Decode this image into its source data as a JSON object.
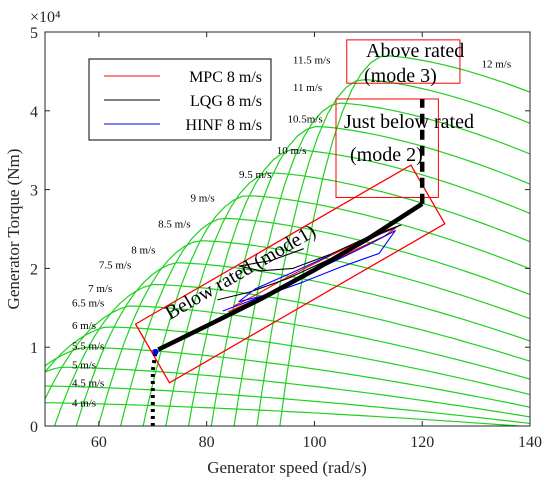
{
  "chart_data": {
    "type": "line",
    "title": "",
    "xlabel": "Generator speed (rad/s)",
    "ylabel": "Generator Torque (Nm)",
    "y_exponent_label": "×10⁴",
    "xlim": [
      50,
      140
    ],
    "ylim": [
      0,
      50000
    ],
    "x_ticks": [
      60,
      80,
      100,
      120,
      140
    ],
    "y_ticks": [
      0,
      10000,
      20000,
      30000,
      40000,
      50000
    ],
    "x_tick_labels": [
      "60",
      "80",
      "100",
      "120",
      "140"
    ],
    "y_tick_labels": [
      "0",
      "1",
      "2",
      "3",
      "4",
      "5"
    ],
    "grid": false,
    "legend_position": "top-left",
    "legend": [
      {
        "name": "MPC 8 m/s",
        "color": "#ff0000"
      },
      {
        "name": "LQG 8 m/s",
        "color": "#000000"
      },
      {
        "name": "HINF 8 m/s",
        "color": "#0000ff"
      }
    ],
    "wind_speed_curves": [
      {
        "label": "4 m/s",
        "label_x": 55,
        "label_y": 3000
      },
      {
        "label": "4.5 m/s",
        "label_x": 55,
        "label_y": 5500
      },
      {
        "label": "5 m/s",
        "label_x": 55,
        "label_y": 7800
      },
      {
        "label": "5.5 m/s",
        "label_x": 55,
        "label_y": 10200
      },
      {
        "label": "6 m/s",
        "label_x": 55,
        "label_y": 12800
      },
      {
        "label": "6.5 m/s",
        "label_x": 55,
        "label_y": 15700
      },
      {
        "label": "7 m/s",
        "label_x": 58,
        "label_y": 17500
      },
      {
        "label": "7.5 m/s",
        "label_x": 60,
        "label_y": 20500
      },
      {
        "label": "8 m/s",
        "label_x": 66,
        "label_y": 22400
      },
      {
        "label": "8.5 m/s",
        "label_x": 71,
        "label_y": 25700
      },
      {
        "label": "9 m/s",
        "label_x": 77,
        "label_y": 29000
      },
      {
        "label": "9.5 m/s",
        "label_x": 86,
        "label_y": 32000
      },
      {
        "label": "10 m/s",
        "label_x": 93,
        "label_y": 35000
      },
      {
        "label": "10.5m/s",
        "label_x": 95,
        "label_y": 39000
      },
      {
        "label": "11 m/s",
        "label_x": 96,
        "label_y": 43000
      },
      {
        "label": "11.5 m/s",
        "label_x": 96,
        "label_y": 46500
      },
      {
        "label": "12 m/s",
        "label_x": 131,
        "label_y": 46000
      }
    ],
    "operating_curve": {
      "color": "#000000",
      "dotted_x": [
        70,
        70,
        70.5
      ],
      "dotted_y": [
        0,
        7000,
        9400
      ],
      "solid_x": [
        71,
        80,
        90,
        100,
        110,
        120
      ],
      "solid_y": [
        9700,
        12700,
        16100,
        19800,
        23800,
        28200
      ],
      "dashed_x": [
        120,
        120
      ],
      "dashed_y": [
        28200,
        41500
      ]
    },
    "trajectories": [
      {
        "name": "MPC 8 m/s",
        "color": "#ff0000",
        "x": [
          84,
          90,
          96,
          102,
          108,
          113,
          115,
          109,
          102,
          95,
          89,
          85
        ],
        "y": [
          14500,
          16300,
          18300,
          20400,
          22500,
          24100,
          25100,
          23600,
          21300,
          18900,
          16600,
          15200
        ]
      },
      {
        "name": "LQG 8 m/s",
        "color": "#000000",
        "x": [
          82,
          88,
          95,
          101,
          107,
          112,
          116,
          110,
          103,
          96,
          90,
          86,
          92,
          98
        ],
        "y": [
          16000,
          17000,
          18700,
          20600,
          22500,
          24300,
          25500,
          24000,
          21800,
          20000,
          19700,
          20300,
          21000,
          22500
        ]
      },
      {
        "name": "HINF 8 m/s",
        "color": "#0000ff",
        "x": [
          83,
          90,
          97,
          104,
          110,
          115,
          112,
          105,
          98,
          91,
          86,
          89,
          96,
          103
        ],
        "y": [
          14600,
          16400,
          18700,
          21000,
          23000,
          24800,
          21900,
          20200,
          18300,
          16600,
          15800,
          17400,
          19500,
          21700
        ]
      }
    ],
    "annotations": [
      {
        "name": "mode3",
        "lines": [
          "Above rated",
          "(mode 3)"
        ],
        "box_x": [
          106,
          127
        ],
        "box_y": [
          43500,
          49000
        ]
      },
      {
        "name": "mode2",
        "lines": [
          "Just below rated",
          "(mode 2)"
        ],
        "box_x": [
          104,
          123
        ],
        "box_y": [
          29000,
          41500
        ]
      },
      {
        "name": "mode1",
        "lines": [
          "Below rated (mode1)"
        ],
        "box_center": [
          95.5,
          19300
        ],
        "box_width": 59,
        "box_height": 8600,
        "box_angle_deg": 30
      }
    ]
  }
}
